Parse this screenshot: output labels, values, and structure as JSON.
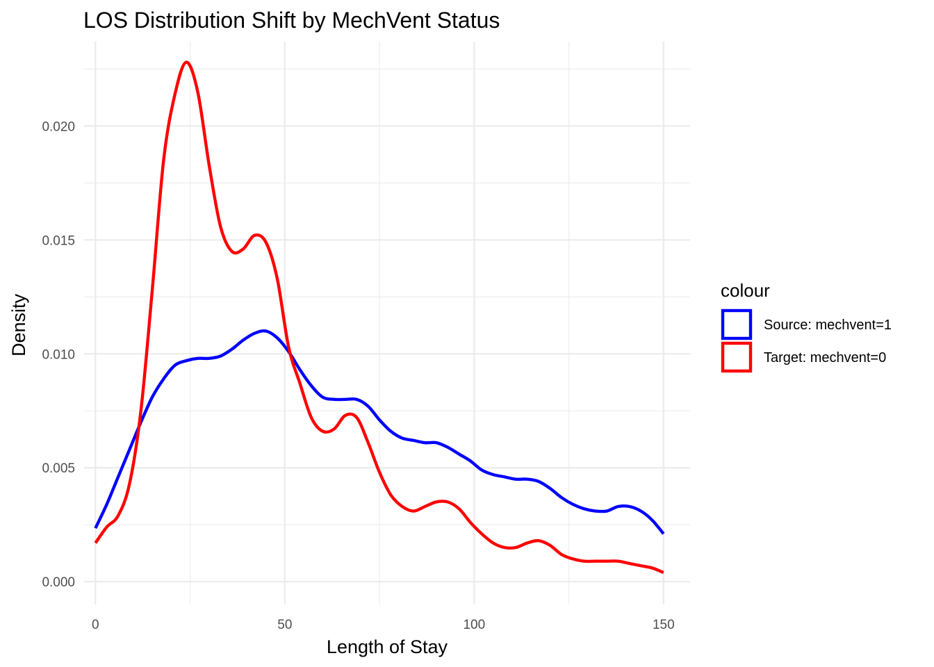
{
  "chart_data": {
    "type": "line",
    "title": "LOS Distribution Shift by MechVent Status",
    "xlabel": "Length of Stay",
    "ylabel": "Density",
    "xlim": [
      -3,
      157
    ],
    "ylim": [
      -0.001,
      0.0237
    ],
    "x_ticks": [
      0,
      50,
      100,
      150
    ],
    "x_tick_labels": [
      "0",
      "50",
      "100",
      "150"
    ],
    "x_minor_ticks": [
      25,
      75,
      125
    ],
    "y_ticks": [
      0,
      0.005,
      0.01,
      0.015,
      0.02
    ],
    "y_tick_labels": [
      "0.000",
      "0.005",
      "0.010",
      "0.015",
      "0.020"
    ],
    "y_minor_ticks": [
      0.0025,
      0.0075,
      0.0125,
      0.0175,
      0.0225
    ],
    "grid": true,
    "legend": {
      "title": "colour",
      "position": "right"
    },
    "series": [
      {
        "name": "Source: mechvent=1",
        "color": "#0000FF",
        "x": [
          0,
          3,
          6,
          9,
          12,
          15,
          18,
          21,
          24,
          27,
          30,
          33,
          36,
          39,
          42,
          45,
          48,
          51,
          54,
          57,
          60,
          63,
          66,
          69,
          72,
          75,
          78,
          81,
          84,
          87,
          90,
          93,
          96,
          99,
          102,
          105,
          108,
          111,
          114,
          117,
          120,
          123,
          126,
          129,
          132,
          135,
          138,
          141,
          144,
          147,
          150
        ],
        "y": [
          0.00235,
          0.0034,
          0.0046,
          0.0058,
          0.007,
          0.0081,
          0.0089,
          0.0095,
          0.0097,
          0.0098,
          0.0098,
          0.0099,
          0.0102,
          0.0106,
          0.0109,
          0.011,
          0.0107,
          0.0101,
          0.0093,
          0.0086,
          0.0081,
          0.008,
          0.008,
          0.008,
          0.0077,
          0.0071,
          0.0066,
          0.0063,
          0.0062,
          0.0061,
          0.0061,
          0.0059,
          0.0056,
          0.0053,
          0.0049,
          0.0047,
          0.0046,
          0.0045,
          0.0045,
          0.0044,
          0.0041,
          0.0037,
          0.0034,
          0.0032,
          0.0031,
          0.0031,
          0.0033,
          0.0033,
          0.0031,
          0.0027,
          0.0021
        ]
      },
      {
        "name": "Target: mechvent=0",
        "color": "#FF0000",
        "x": [
          0,
          3,
          6,
          9,
          12,
          15,
          18,
          21,
          24,
          27,
          30,
          33,
          36,
          39,
          42,
          45,
          48,
          51,
          54,
          57,
          60,
          63,
          66,
          69,
          72,
          75,
          78,
          81,
          84,
          87,
          90,
          93,
          96,
          99,
          102,
          105,
          108,
          111,
          114,
          117,
          120,
          123,
          126,
          129,
          132,
          135,
          138,
          141,
          144,
          147,
          150
        ],
        "y": [
          0.0017,
          0.0024,
          0.0029,
          0.0043,
          0.0075,
          0.0128,
          0.0185,
          0.0214,
          0.0228,
          0.0215,
          0.0183,
          0.0156,
          0.0145,
          0.0146,
          0.0152,
          0.0149,
          0.0133,
          0.0103,
          0.0087,
          0.0072,
          0.0066,
          0.0067,
          0.0073,
          0.0072,
          0.0061,
          0.0048,
          0.0038,
          0.0033,
          0.0031,
          0.0033,
          0.0035,
          0.0035,
          0.0032,
          0.0026,
          0.0021,
          0.0017,
          0.0015,
          0.0015,
          0.0017,
          0.0018,
          0.0016,
          0.0012,
          0.001,
          0.0009,
          0.0009,
          0.0009,
          0.0009,
          0.0008,
          0.0007,
          0.0006,
          0.0004
        ]
      }
    ]
  }
}
